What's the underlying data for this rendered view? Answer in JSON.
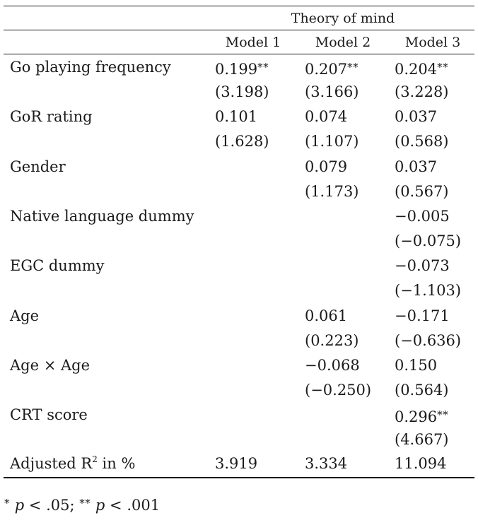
{
  "table": {
    "group_header": "Theory of mind",
    "columns": [
      "Model 1",
      "Model 2",
      "Model 3"
    ],
    "rows": [
      {
        "label": "Go playing frequency",
        "values": [
          {
            "coef": "0.199",
            "stars": "**",
            "t": "(3.198)"
          },
          {
            "coef": "0.207",
            "stars": "**",
            "t": "(3.166)"
          },
          {
            "coef": "0.204",
            "stars": "**",
            "t": "(3.228)"
          }
        ]
      },
      {
        "label": "GoR rating",
        "values": [
          {
            "coef": "0.101",
            "stars": "",
            "t": "(1.628)"
          },
          {
            "coef": "0.074",
            "stars": "",
            "t": "(1.107)"
          },
          {
            "coef": "0.037",
            "stars": "",
            "t": "(0.568)"
          }
        ]
      },
      {
        "label": "Gender",
        "values": [
          {
            "coef": "",
            "stars": "",
            "t": ""
          },
          {
            "coef": "0.079",
            "stars": "",
            "t": "(1.173)"
          },
          {
            "coef": "0.037",
            "stars": "",
            "t": "(0.567)"
          }
        ]
      },
      {
        "label": "Native language dummy",
        "values": [
          {
            "coef": "",
            "stars": "",
            "t": ""
          },
          {
            "coef": "",
            "stars": "",
            "t": ""
          },
          {
            "coef": "−0.005",
            "stars": "",
            "t": "(−0.075)"
          }
        ]
      },
      {
        "label": "EGC dummy",
        "values": [
          {
            "coef": "",
            "stars": "",
            "t": ""
          },
          {
            "coef": "",
            "stars": "",
            "t": ""
          },
          {
            "coef": "−0.073",
            "stars": "",
            "t": "(−1.103)"
          }
        ]
      },
      {
        "label": "Age",
        "values": [
          {
            "coef": "",
            "stars": "",
            "t": ""
          },
          {
            "coef": "0.061",
            "stars": "",
            "t": "(0.223)"
          },
          {
            "coef": "−0.171",
            "stars": "",
            "t": "(−0.636)"
          }
        ]
      },
      {
        "label": "Age × Age",
        "values": [
          {
            "coef": "",
            "stars": "",
            "t": ""
          },
          {
            "coef": "−0.068",
            "stars": "",
            "t": "(−0.250)"
          },
          {
            "coef": "0.150",
            "stars": "",
            "t": "(0.564)"
          }
        ]
      },
      {
        "label": "CRT score",
        "values": [
          {
            "coef": "",
            "stars": "",
            "t": ""
          },
          {
            "coef": "",
            "stars": "",
            "t": ""
          },
          {
            "coef": "0.296",
            "stars": "**",
            "t": "(4.667)"
          }
        ]
      }
    ],
    "r2_row": {
      "label_main": "Adjusted R",
      "label_sup": "2",
      "label_tail": " in %",
      "values": [
        "3.919",
        "3.334",
        "11.094"
      ]
    }
  },
  "footnote": {
    "star1": "*",
    "p1": "p",
    "cond1": " < .05; ",
    "star2": "**",
    "p2": "p",
    "cond2": " < .001"
  }
}
